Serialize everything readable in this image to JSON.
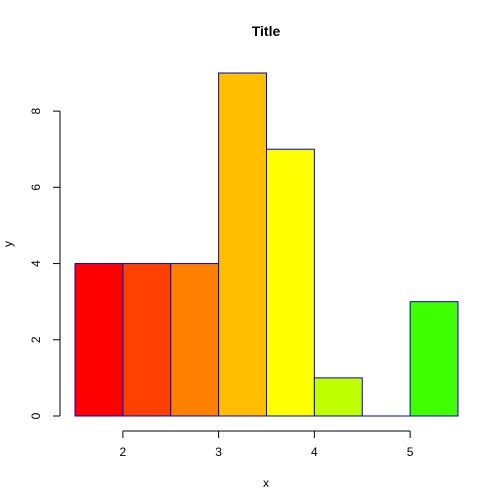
{
  "chart_data": {
    "type": "bar",
    "title": "Title",
    "xlabel": "x",
    "ylabel": "y",
    "bin_edges": [
      1.5,
      2.0,
      2.5,
      3.0,
      3.5,
      4.0,
      4.5,
      5.0,
      5.5
    ],
    "values": [
      4,
      4,
      4,
      9,
      7,
      1,
      0,
      3
    ],
    "bar_colors": [
      "#FF0000",
      "#FF4000",
      "#FF8000",
      "#FFBF00",
      "#FFFF00",
      "#BFFF00",
      "#80FF00",
      "#40FF00"
    ],
    "bar_border_color": "#0000CC",
    "xlim": [
      1.5,
      5.5
    ],
    "ylim": [
      0,
      9
    ],
    "xticks": [
      2,
      3,
      4,
      5
    ],
    "yticks": [
      0,
      2,
      4,
      6,
      8
    ],
    "grid": false,
    "legend": "none"
  }
}
